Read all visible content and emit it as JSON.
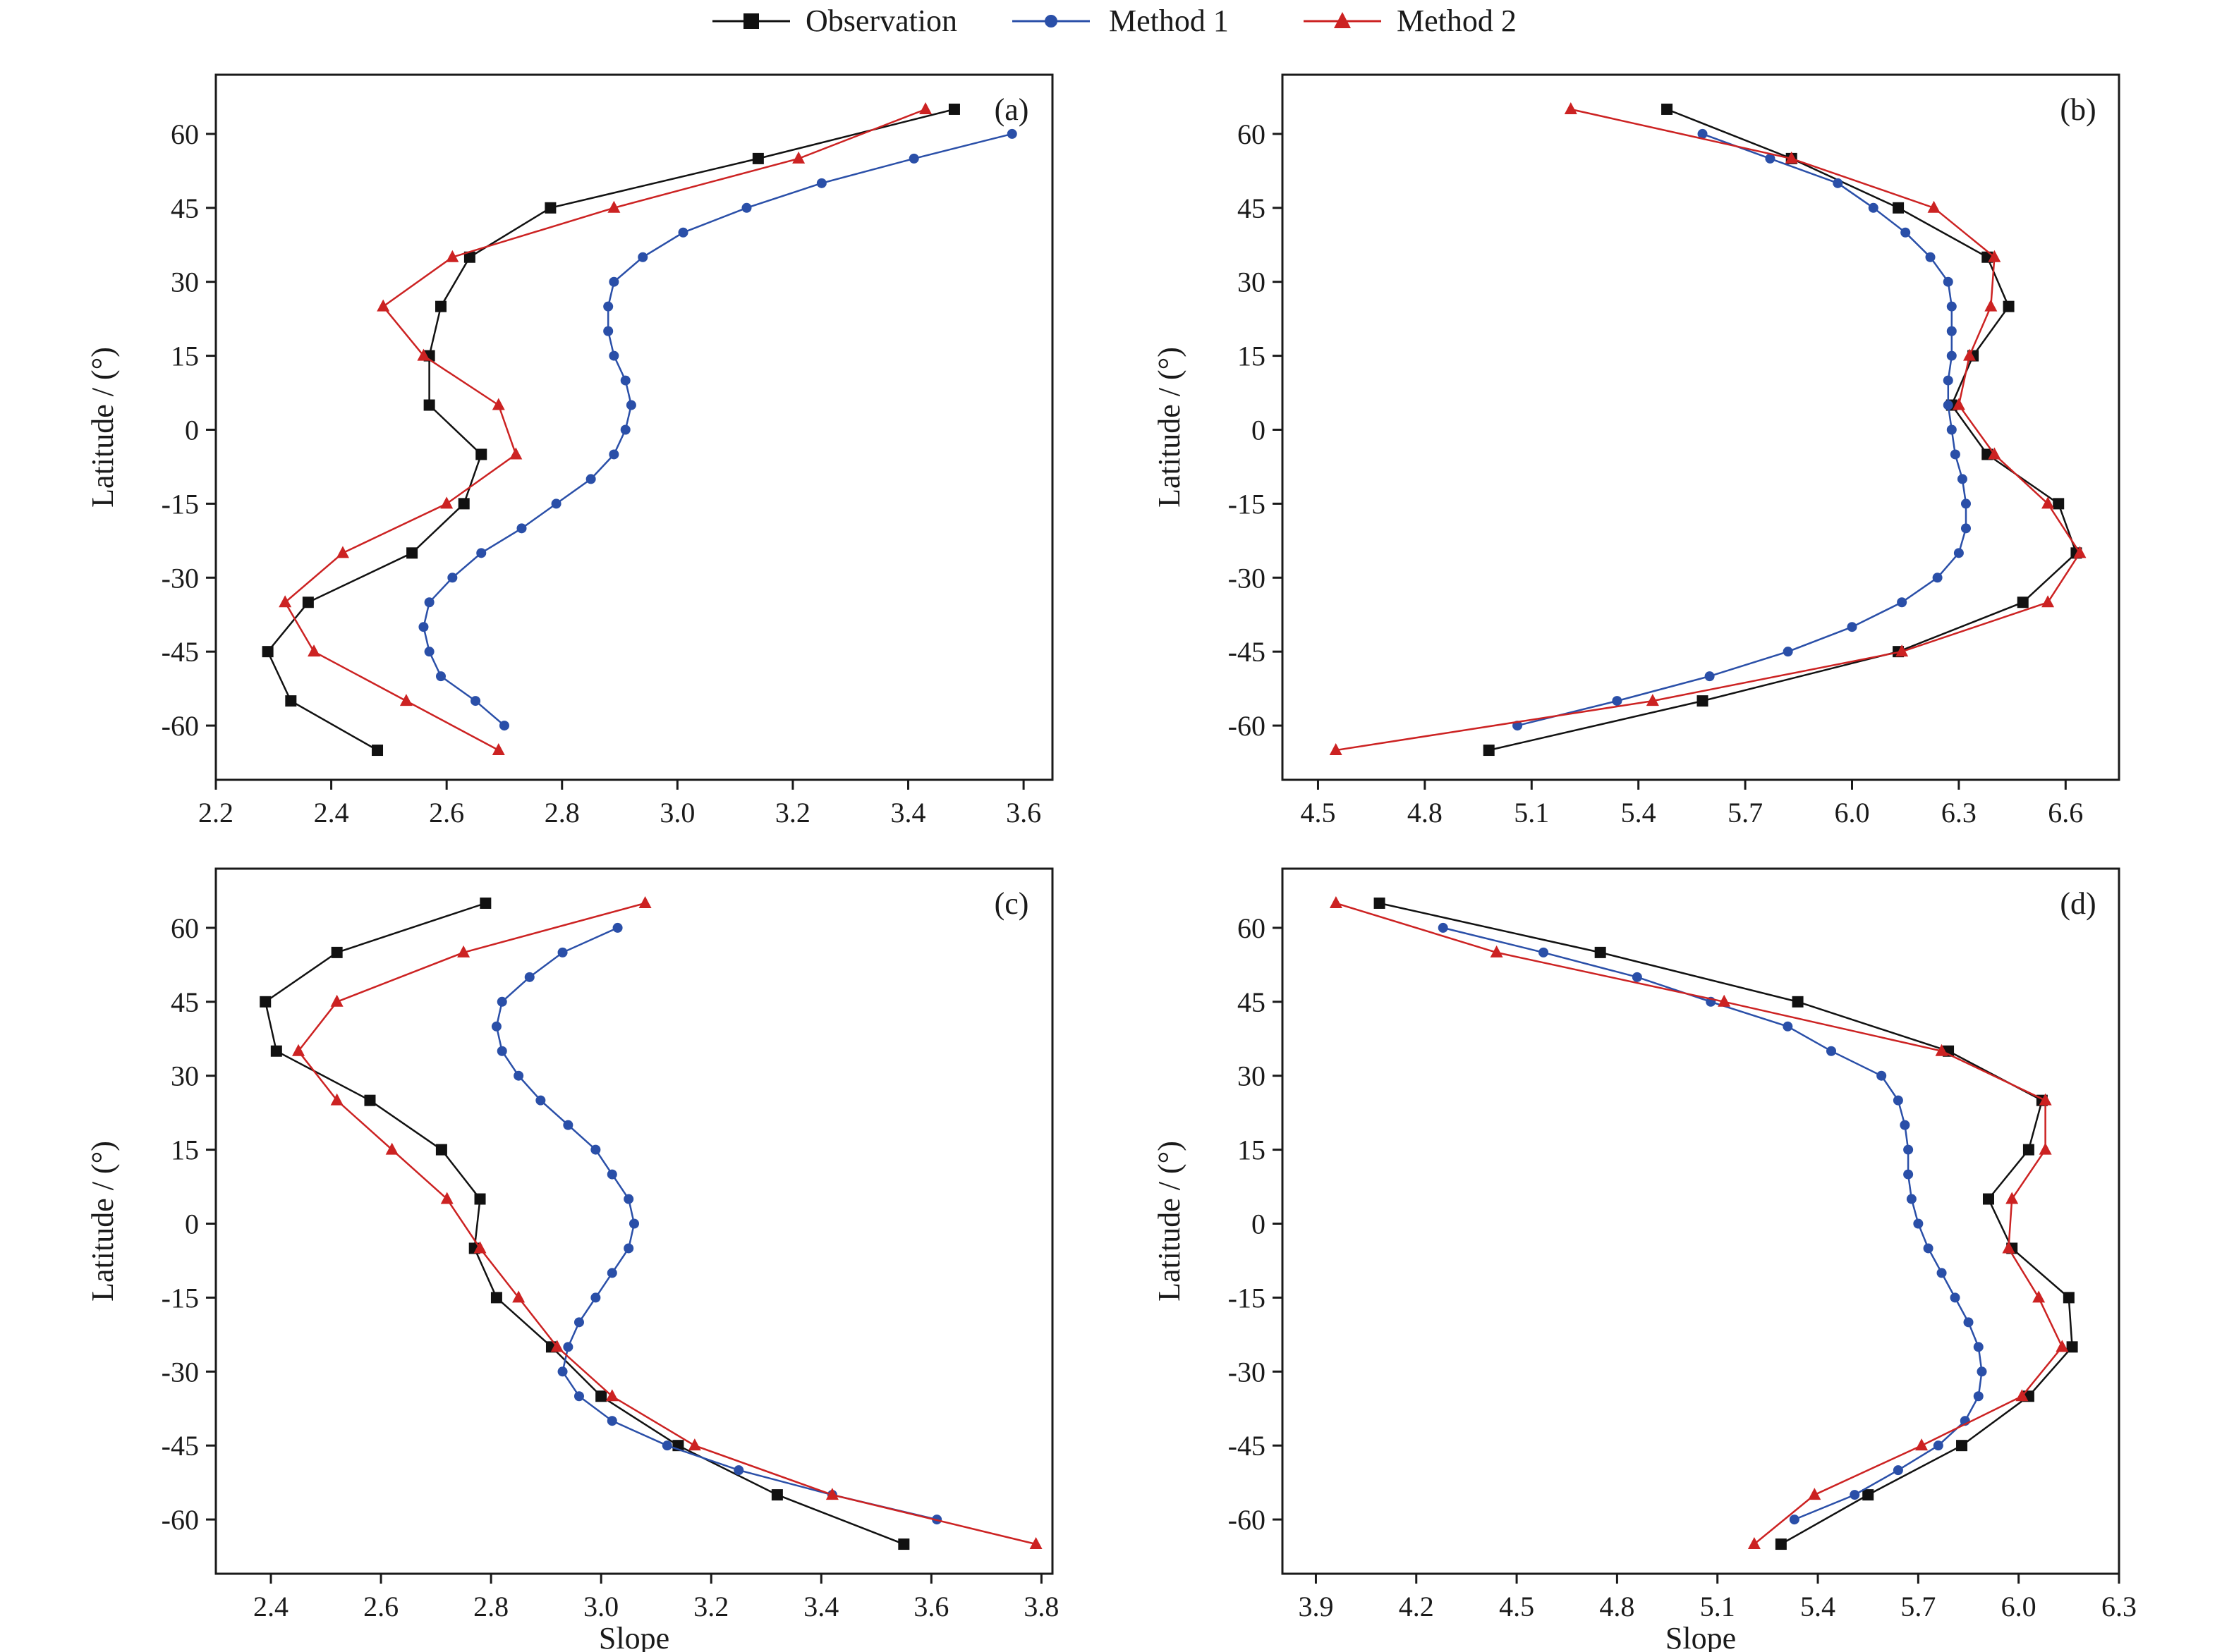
{
  "legend": {
    "placement": "top-center",
    "items": [
      {
        "label": "Observation",
        "color": "#111111",
        "marker": "square"
      },
      {
        "label": "Method 1",
        "color": "#2a4fa8",
        "marker": "circle"
      },
      {
        "label": "Method 2",
        "color": "#cc2222",
        "marker": "triangle"
      }
    ]
  },
  "chart_data": [
    {
      "type": "line",
      "panel_label": "(a)",
      "xlabel": "",
      "ylabel": "Latitude / (°)",
      "xlim": [
        2.2,
        3.65
      ],
      "ylim": [
        -71,
        72
      ],
      "xticks": [
        2.2,
        2.4,
        2.6,
        2.8,
        3.0,
        3.2,
        3.4,
        3.6
      ],
      "yticks": [
        -60,
        -45,
        -30,
        -15,
        0,
        15,
        30,
        45,
        60
      ],
      "tick_decimals": 1,
      "series": [
        {
          "name": "Observation",
          "points": [
            [
              2.48,
              -65
            ],
            [
              2.33,
              -55
            ],
            [
              2.29,
              -45
            ],
            [
              2.36,
              -35
            ],
            [
              2.54,
              -25
            ],
            [
              2.63,
              -15
            ],
            [
              2.66,
              -5
            ],
            [
              2.57,
              5
            ],
            [
              2.57,
              15
            ],
            [
              2.59,
              25
            ],
            [
              2.64,
              35
            ],
            [
              2.78,
              45
            ],
            [
              3.14,
              55
            ],
            [
              3.48,
              65
            ]
          ]
        },
        {
          "name": "Method 1",
          "points": [
            [
              2.7,
              -60
            ],
            [
              2.65,
              -55
            ],
            [
              2.59,
              -50
            ],
            [
              2.57,
              -45
            ],
            [
              2.56,
              -40
            ],
            [
              2.57,
              -35
            ],
            [
              2.61,
              -30
            ],
            [
              2.66,
              -25
            ],
            [
              2.73,
              -20
            ],
            [
              2.79,
              -15
            ],
            [
              2.85,
              -10
            ],
            [
              2.89,
              -5
            ],
            [
              2.91,
              0
            ],
            [
              2.92,
              5
            ],
            [
              2.91,
              10
            ],
            [
              2.89,
              15
            ],
            [
              2.88,
              20
            ],
            [
              2.88,
              25
            ],
            [
              2.89,
              30
            ],
            [
              2.94,
              35
            ],
            [
              3.01,
              40
            ],
            [
              3.12,
              45
            ],
            [
              3.25,
              50
            ],
            [
              3.41,
              55
            ],
            [
              3.58,
              60
            ]
          ]
        },
        {
          "name": "Method 2",
          "points": [
            [
              2.69,
              -65
            ],
            [
              2.53,
              -55
            ],
            [
              2.37,
              -45
            ],
            [
              2.32,
              -35
            ],
            [
              2.42,
              -25
            ],
            [
              2.6,
              -15
            ],
            [
              2.72,
              -5
            ],
            [
              2.69,
              5
            ],
            [
              2.56,
              15
            ],
            [
              2.49,
              25
            ],
            [
              2.61,
              35
            ],
            [
              2.89,
              45
            ],
            [
              3.21,
              55
            ],
            [
              3.43,
              65
            ]
          ]
        }
      ]
    },
    {
      "type": "line",
      "panel_label": "(b)",
      "xlabel": "",
      "ylabel": "Latitude / (°)",
      "xlim": [
        4.4,
        6.75
      ],
      "ylim": [
        -71,
        72
      ],
      "xticks": [
        4.5,
        4.8,
        5.1,
        5.4,
        5.7,
        6.0,
        6.3,
        6.6
      ],
      "yticks": [
        -60,
        -45,
        -30,
        -15,
        0,
        15,
        30,
        45,
        60
      ],
      "tick_decimals": 1,
      "series": [
        {
          "name": "Observation",
          "points": [
            [
              4.98,
              -65
            ],
            [
              5.58,
              -55
            ],
            [
              6.13,
              -45
            ],
            [
              6.48,
              -35
            ],
            [
              6.63,
              -25
            ],
            [
              6.58,
              -15
            ],
            [
              6.38,
              -5
            ],
            [
              6.28,
              5
            ],
            [
              6.34,
              15
            ],
            [
              6.44,
              25
            ],
            [
              6.38,
              35
            ],
            [
              6.13,
              45
            ],
            [
              5.83,
              55
            ],
            [
              5.48,
              65
            ]
          ]
        },
        {
          "name": "Method 1",
          "points": [
            [
              5.06,
              -60
            ],
            [
              5.34,
              -55
            ],
            [
              5.6,
              -50
            ],
            [
              5.82,
              -45
            ],
            [
              6.0,
              -40
            ],
            [
              6.14,
              -35
            ],
            [
              6.24,
              -30
            ],
            [
              6.3,
              -25
            ],
            [
              6.32,
              -20
            ],
            [
              6.32,
              -15
            ],
            [
              6.31,
              -10
            ],
            [
              6.29,
              -5
            ],
            [
              6.28,
              0
            ],
            [
              6.27,
              5
            ],
            [
              6.27,
              10
            ],
            [
              6.28,
              15
            ],
            [
              6.28,
              20
            ],
            [
              6.28,
              25
            ],
            [
              6.27,
              30
            ],
            [
              6.22,
              35
            ],
            [
              6.15,
              40
            ],
            [
              6.06,
              45
            ],
            [
              5.96,
              50
            ],
            [
              5.77,
              55
            ],
            [
              5.58,
              60
            ]
          ]
        },
        {
          "name": "Method 2",
          "points": [
            [
              4.55,
              -65
            ],
            [
              5.44,
              -55
            ],
            [
              6.14,
              -45
            ],
            [
              6.55,
              -35
            ],
            [
              6.64,
              -25
            ],
            [
              6.55,
              -15
            ],
            [
              6.4,
              -5
            ],
            [
              6.3,
              5
            ],
            [
              6.33,
              15
            ],
            [
              6.39,
              25
            ],
            [
              6.4,
              35
            ],
            [
              6.23,
              45
            ],
            [
              5.83,
              55
            ],
            [
              5.21,
              65
            ]
          ]
        }
      ]
    },
    {
      "type": "line",
      "panel_label": "(c)",
      "xlabel": "Slope",
      "ylabel": "Latitude / (°)",
      "xlim": [
        2.3,
        3.82
      ],
      "ylim": [
        -71,
        72
      ],
      "xticks": [
        2.4,
        2.6,
        2.8,
        3.0,
        3.2,
        3.4,
        3.6,
        3.8
      ],
      "yticks": [
        -60,
        -45,
        -30,
        -15,
        0,
        15,
        30,
        45,
        60
      ],
      "tick_decimals": 1,
      "series": [
        {
          "name": "Observation",
          "points": [
            [
              3.55,
              -65
            ],
            [
              3.32,
              -55
            ],
            [
              3.14,
              -45
            ],
            [
              3.0,
              -35
            ],
            [
              2.91,
              -25
            ],
            [
              2.81,
              -15
            ],
            [
              2.77,
              -5
            ],
            [
              2.78,
              5
            ],
            [
              2.71,
              15
            ],
            [
              2.58,
              25
            ],
            [
              2.41,
              35
            ],
            [
              2.39,
              45
            ],
            [
              2.52,
              55
            ],
            [
              2.79,
              65
            ]
          ]
        },
        {
          "name": "Method 1",
          "points": [
            [
              3.61,
              -60
            ],
            [
              3.42,
              -55
            ],
            [
              3.25,
              -50
            ],
            [
              3.12,
              -45
            ],
            [
              3.02,
              -40
            ],
            [
              2.96,
              -35
            ],
            [
              2.93,
              -30
            ],
            [
              2.94,
              -25
            ],
            [
              2.96,
              -20
            ],
            [
              2.99,
              -15
            ],
            [
              3.02,
              -10
            ],
            [
              3.05,
              -5
            ],
            [
              3.06,
              0
            ],
            [
              3.05,
              5
            ],
            [
              3.02,
              10
            ],
            [
              2.99,
              15
            ],
            [
              2.94,
              20
            ],
            [
              2.89,
              25
            ],
            [
              2.85,
              30
            ],
            [
              2.82,
              35
            ],
            [
              2.81,
              40
            ],
            [
              2.82,
              45
            ],
            [
              2.87,
              50
            ],
            [
              2.93,
              55
            ],
            [
              3.03,
              60
            ]
          ]
        },
        {
          "name": "Method 2",
          "points": [
            [
              3.79,
              -65
            ],
            [
              3.42,
              -55
            ],
            [
              3.17,
              -45
            ],
            [
              3.02,
              -35
            ],
            [
              2.92,
              -25
            ],
            [
              2.85,
              -15
            ],
            [
              2.78,
              -5
            ],
            [
              2.72,
              5
            ],
            [
              2.62,
              15
            ],
            [
              2.52,
              25
            ],
            [
              2.45,
              35
            ],
            [
              2.52,
              45
            ],
            [
              2.75,
              55
            ],
            [
              3.08,
              65
            ]
          ]
        }
      ]
    },
    {
      "type": "line",
      "panel_label": "(d)",
      "xlabel": "Slope",
      "ylabel": "Latitude / (°)",
      "xlim": [
        3.8,
        6.3
      ],
      "ylim": [
        -71,
        72
      ],
      "xticks": [
        3.9,
        4.2,
        4.5,
        4.8,
        5.1,
        5.4,
        5.7,
        6.0,
        6.3
      ],
      "yticks": [
        -60,
        -45,
        -30,
        -15,
        0,
        15,
        30,
        45,
        60
      ],
      "tick_decimals": 1,
      "series": [
        {
          "name": "Observation",
          "points": [
            [
              5.29,
              -65
            ],
            [
              5.55,
              -55
            ],
            [
              5.83,
              -45
            ],
            [
              6.03,
              -35
            ],
            [
              6.16,
              -25
            ],
            [
              6.15,
              -15
            ],
            [
              5.98,
              -5
            ],
            [
              5.91,
              5
            ],
            [
              6.03,
              15
            ],
            [
              6.07,
              25
            ],
            [
              5.79,
              35
            ],
            [
              5.34,
              45
            ],
            [
              4.75,
              55
            ],
            [
              4.09,
              65
            ]
          ]
        },
        {
          "name": "Method 1",
          "points": [
            [
              5.33,
              -60
            ],
            [
              5.51,
              -55
            ],
            [
              5.64,
              -50
            ],
            [
              5.76,
              -45
            ],
            [
              5.84,
              -40
            ],
            [
              5.88,
              -35
            ],
            [
              5.89,
              -30
            ],
            [
              5.88,
              -25
            ],
            [
              5.85,
              -20
            ],
            [
              5.81,
              -15
            ],
            [
              5.77,
              -10
            ],
            [
              5.73,
              -5
            ],
            [
              5.7,
              0
            ],
            [
              5.68,
              5
            ],
            [
              5.67,
              10
            ],
            [
              5.67,
              15
            ],
            [
              5.66,
              20
            ],
            [
              5.64,
              25
            ],
            [
              5.59,
              30
            ],
            [
              5.44,
              35
            ],
            [
              5.31,
              40
            ],
            [
              5.08,
              45
            ],
            [
              4.86,
              50
            ],
            [
              4.58,
              55
            ],
            [
              4.28,
              60
            ]
          ]
        },
        {
          "name": "Method 2",
          "points": [
            [
              5.21,
              -65
            ],
            [
              5.39,
              -55
            ],
            [
              5.71,
              -45
            ],
            [
              6.01,
              -35
            ],
            [
              6.13,
              -25
            ],
            [
              6.06,
              -15
            ],
            [
              5.97,
              -5
            ],
            [
              5.98,
              5
            ],
            [
              6.08,
              15
            ],
            [
              6.08,
              25
            ],
            [
              5.77,
              35
            ],
            [
              5.12,
              45
            ],
            [
              4.44,
              55
            ],
            [
              3.96,
              65
            ]
          ]
        }
      ]
    }
  ]
}
